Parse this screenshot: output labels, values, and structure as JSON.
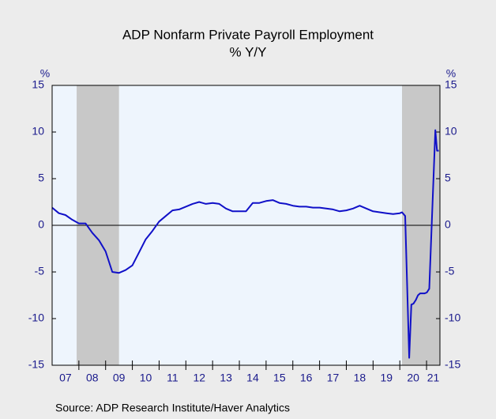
{
  "chart_data": {
    "type": "line",
    "title": "ADP Nonfarm Private Payroll Employment",
    "subtitle": "% Y/Y",
    "y_label": "%",
    "y2_label": "%",
    "source": "Source:  ADP Research Institute/Haver Analytics",
    "xlim": [
      2007,
      2021.5
    ],
    "xticks": [
      {
        "value": 2007.5,
        "label": "07"
      },
      {
        "value": 2008.5,
        "label": "08"
      },
      {
        "value": 2009.5,
        "label": "09"
      },
      {
        "value": 2010.5,
        "label": "10"
      },
      {
        "value": 2011.5,
        "label": "11"
      },
      {
        "value": 2012.5,
        "label": "12"
      },
      {
        "value": 2013.5,
        "label": "13"
      },
      {
        "value": 2014.5,
        "label": "14"
      },
      {
        "value": 2015.5,
        "label": "15"
      },
      {
        "value": 2016.5,
        "label": "16"
      },
      {
        "value": 2017.5,
        "label": "17"
      },
      {
        "value": 2018.5,
        "label": "18"
      },
      {
        "value": 2019.5,
        "label": "19"
      },
      {
        "value": 2020.5,
        "label": "20"
      },
      {
        "value": 2021.25,
        "label": "21"
      }
    ],
    "xminorticks": [
      2008,
      2009,
      2010,
      2011,
      2012,
      2013,
      2014,
      2015,
      2016,
      2017,
      2018,
      2019,
      2020,
      2021
    ],
    "ylim": [
      -15,
      15
    ],
    "yticks": [
      15,
      10,
      5,
      0,
      -5,
      -10,
      -15
    ],
    "y2lim": [
      -15,
      15
    ],
    "y2ticks": [
      15,
      10,
      5,
      0,
      -5,
      -10,
      -15
    ],
    "recessions": [
      [
        2007.917,
        2009.5
      ],
      [
        2020.083,
        2021.5
      ]
    ],
    "recession_color": "#c8c8c8",
    "zero_line": true,
    "series": [
      {
        "name": "ADP Nonfarm Private Payroll Employment",
        "color": "#1010c8",
        "x": [
          2007.0,
          2007.25,
          2007.5,
          2007.75,
          2008.0,
          2008.25,
          2008.5,
          2008.75,
          2009.0,
          2009.25,
          2009.5,
          2009.75,
          2010.0,
          2010.25,
          2010.5,
          2010.75,
          2011.0,
          2011.25,
          2011.5,
          2011.75,
          2012.0,
          2012.25,
          2012.5,
          2012.75,
          2013.0,
          2013.25,
          2013.5,
          2013.75,
          2014.0,
          2014.25,
          2014.5,
          2014.75,
          2015.0,
          2015.25,
          2015.5,
          2015.75,
          2016.0,
          2016.25,
          2016.5,
          2016.75,
          2017.0,
          2017.25,
          2017.5,
          2017.75,
          2018.0,
          2018.25,
          2018.5,
          2018.75,
          2019.0,
          2019.25,
          2019.5,
          2019.75,
          2020.0,
          2020.083,
          2020.2,
          2020.35,
          2020.43,
          2020.51,
          2020.6,
          2020.68,
          2020.76,
          2020.85,
          2020.93,
          2021.01,
          2021.1,
          2021.33,
          2021.39,
          2021.46
        ],
        "values": [
          1.9,
          1.3,
          1.1,
          0.6,
          0.2,
          0.2,
          -0.8,
          -1.6,
          -2.8,
          -5.0,
          -5.1,
          -4.8,
          -4.3,
          -2.9,
          -1.5,
          -0.6,
          0.4,
          1.0,
          1.6,
          1.7,
          2.0,
          2.3,
          2.5,
          2.3,
          2.4,
          2.3,
          1.8,
          1.5,
          1.5,
          1.5,
          2.4,
          2.4,
          2.6,
          2.7,
          2.4,
          2.3,
          2.1,
          2.0,
          2.0,
          1.9,
          1.9,
          1.8,
          1.7,
          1.5,
          1.6,
          1.8,
          2.1,
          1.8,
          1.5,
          1.4,
          1.3,
          1.2,
          1.3,
          1.4,
          1.0,
          -14.2,
          -8.5,
          -8.4,
          -8.0,
          -7.5,
          -7.3,
          -7.3,
          -7.3,
          -7.2,
          -6.8,
          10.2,
          8.0,
          8.0
        ]
      }
    ]
  }
}
